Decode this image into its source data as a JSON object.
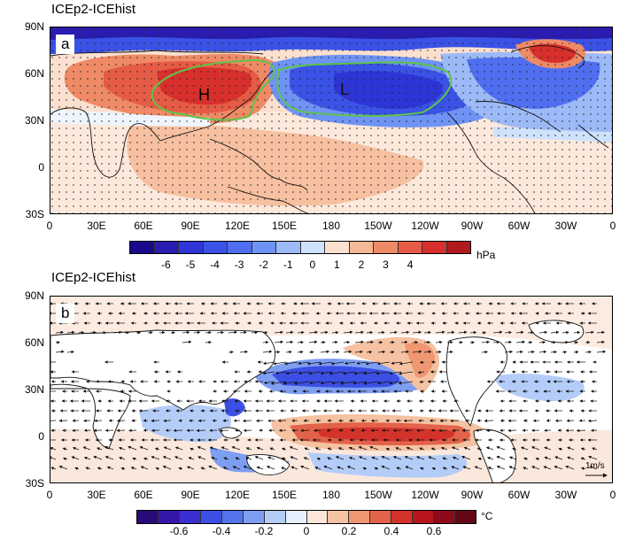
{
  "panel_a": {
    "title": "ICEp2-ICEhist",
    "letter": "a",
    "high_label": "H",
    "low_label": "L",
    "lat_labels": [
      "90N",
      "60N",
      "30N",
      "0",
      "30S"
    ],
    "lon_labels": [
      "0",
      "30E",
      "60E",
      "90E",
      "120E",
      "150E",
      "180",
      "150W",
      "120W",
      "90W",
      "60W",
      "30W",
      "0"
    ],
    "colorbar": {
      "labels": [
        "-6",
        "-5",
        "-4",
        "-3",
        "-2",
        "-1",
        "0",
        "1",
        "2",
        "3",
        "4"
      ],
      "unit": "hPa",
      "colors": [
        "#1a0a8c",
        "#2a1cb0",
        "#2e35d6",
        "#3a52e6",
        "#4f6ff0",
        "#6f93f5",
        "#9dbaf8",
        "#cfe2fb",
        "#fbe0cf",
        "#f6b895",
        "#ef8a66",
        "#e55b45",
        "#d7302c",
        "#b01a1e"
      ]
    }
  },
  "panel_b": {
    "title": "ICEp2-ICEhist",
    "letter": "b",
    "ref_vector_label": "1m/s",
    "lat_labels": [
      "90N",
      "60N",
      "30N",
      "0",
      "30S"
    ],
    "lon_labels": [
      "0",
      "30E",
      "60E",
      "90E",
      "120E",
      "150E",
      "180",
      "150W",
      "120W",
      "90W",
      "60W",
      "30W",
      "0"
    ],
    "colorbar": {
      "labels": [
        "-0.6",
        "-0.4",
        "-0.2",
        "0",
        "0.2",
        "0.4",
        "0.6"
      ],
      "unit": "°C",
      "colors": [
        "#2a0a78",
        "#3416a8",
        "#3a2fd0",
        "#3c4fe4",
        "#5474ec",
        "#7e9ef2",
        "#b4cdf8",
        "#e6effc",
        "#fbe6d8",
        "#f5c2a2",
        "#ee9772",
        "#e2634a",
        "#d4332c",
        "#b5151b",
        "#8c0a1a",
        "#620716"
      ]
    }
  }
}
